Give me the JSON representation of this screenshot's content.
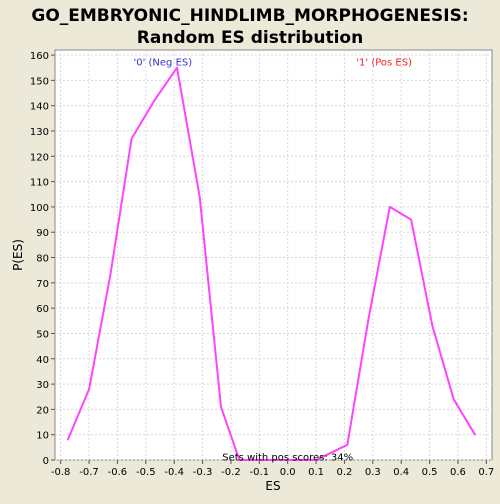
{
  "chart_data": {
    "type": "line",
    "title_line1": "GO_EMBRYONIC_HINDLIMB_MORPHOGENESIS:",
    "title_line2": "Random ES distribution",
    "xlabel": "ES",
    "ylabel": "P(ES)",
    "xlim": [
      -0.82,
      0.72
    ],
    "ylim": [
      0,
      162
    ],
    "x_ticks": [
      -0.8,
      -0.7,
      -0.6,
      -0.5,
      -0.4,
      -0.3,
      -0.2,
      -0.1,
      0.0,
      0.1,
      0.2,
      0.3,
      0.4,
      0.5,
      0.6,
      0.7
    ],
    "x_tick_labels": [
      "-0.8",
      "-0.7",
      "-0.6",
      "-0.5",
      "-0.4",
      "-0.3",
      "-0.2",
      "-0.1",
      "0.0",
      "0.1",
      "0.2",
      "0.3",
      "0.4",
      "0.5",
      "0.6",
      "0.7"
    ],
    "y_ticks": [
      0,
      10,
      20,
      30,
      40,
      50,
      60,
      70,
      80,
      90,
      100,
      110,
      120,
      130,
      140,
      150,
      160
    ],
    "grid": true,
    "series": [
      {
        "color": "#ff44ff",
        "x": [
          -0.775,
          -0.7,
          -0.625,
          -0.55,
          -0.47,
          -0.39,
          -0.31,
          -0.235,
          -0.17,
          -0.1,
          0.0,
          0.1,
          0.21,
          0.285,
          0.36,
          0.435,
          0.51,
          0.585,
          0.66
        ],
        "y": [
          8,
          28,
          73,
          127,
          142,
          155,
          104,
          21,
          0,
          0,
          0,
          0,
          6,
          56,
          100,
          95,
          53,
          24,
          10
        ]
      }
    ],
    "annotations": [
      {
        "text": "'0' (Neg ES)",
        "x": -0.44,
        "y": 157,
        "color": "#3333cc"
      },
      {
        "text": "'1' (Pos ES)",
        "x": 0.34,
        "y": 157,
        "color": "#ee2222"
      },
      {
        "text": "Sets with pos scores: 34%",
        "x": 0.0,
        "y": 1,
        "color": "#000000"
      }
    ]
  }
}
